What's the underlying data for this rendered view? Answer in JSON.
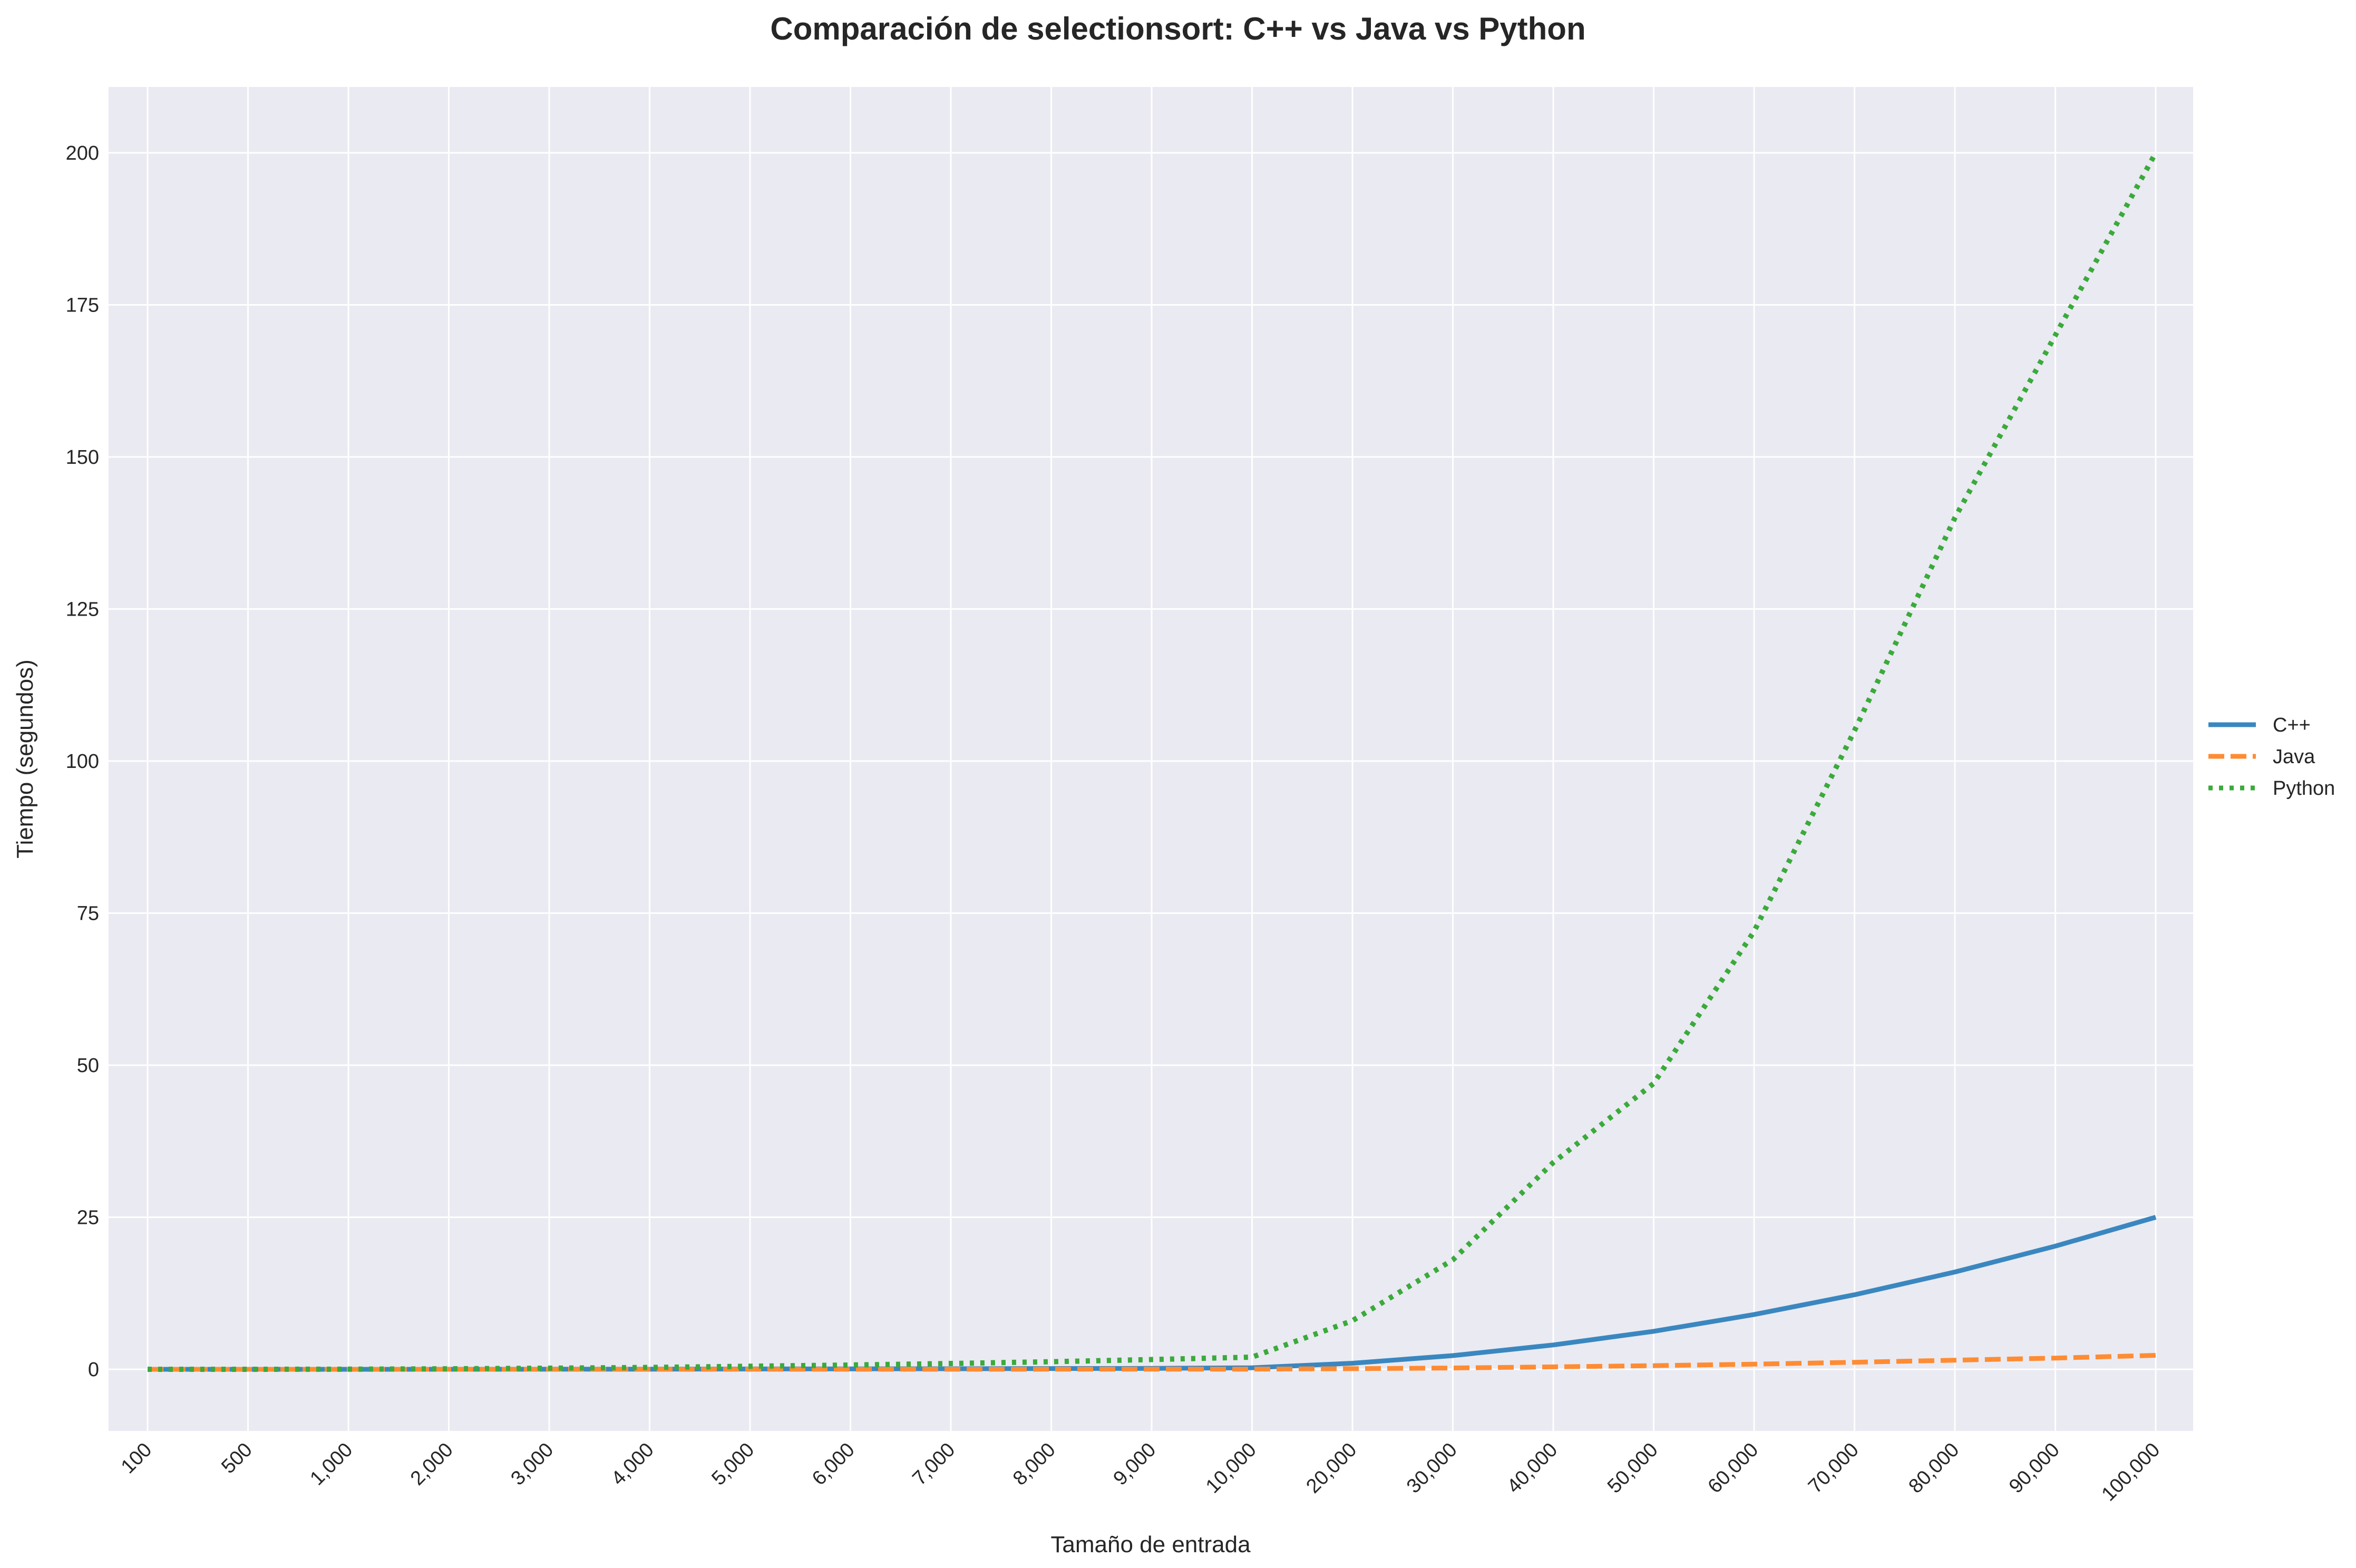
{
  "chart_data": {
    "type": "line",
    "title": "Comparación de selectionsort: C++ vs Java vs Python",
    "xlabel": "Tamaño de entrada",
    "ylabel": "Tiempo (segundos)",
    "x_scale": "categorical",
    "categories": [
      "100",
      "500",
      "1,000",
      "2,000",
      "3,000",
      "4,000",
      "5,000",
      "6,000",
      "7,000",
      "8,000",
      "9,000",
      "10,000",
      "20,000",
      "30,000",
      "40,000",
      "50,000",
      "60,000",
      "70,000",
      "80,000",
      "90,000",
      "100,000"
    ],
    "ylim": [
      -10,
      210
    ],
    "yticks": [
      0,
      25,
      50,
      75,
      100,
      125,
      150,
      175,
      200
    ],
    "grid": true,
    "legend_position": "right, outside plot",
    "series": [
      {
        "name": "C++",
        "color": "#3a87c0",
        "style": "solid",
        "values": [
          0.0,
          0.0,
          0.0,
          0.01,
          0.02,
          0.03,
          0.05,
          0.07,
          0.09,
          0.12,
          0.15,
          0.25,
          1.0,
          2.25,
          4.0,
          6.25,
          9.0,
          12.25,
          16.0,
          20.25,
          25.0
        ]
      },
      {
        "name": "Java",
        "color": "#ff8c33",
        "style": "dashed",
        "values": [
          0.0,
          0.0,
          0.0,
          0.0,
          0.0,
          0.0,
          0.01,
          0.01,
          0.01,
          0.02,
          0.02,
          0.03,
          0.1,
          0.22,
          0.4,
          0.6,
          0.85,
          1.15,
          1.5,
          1.85,
          2.3
        ]
      },
      {
        "name": "Python",
        "color": "#3aaa3a",
        "style": "dotted",
        "values": [
          0.0,
          0.0,
          0.02,
          0.08,
          0.18,
          0.3,
          0.5,
          0.7,
          0.95,
          1.25,
          1.6,
          2.0,
          8.0,
          18.0,
          34.0,
          47.0,
          72.0,
          105.0,
          140.0,
          170.0,
          200.0
        ]
      }
    ]
  }
}
